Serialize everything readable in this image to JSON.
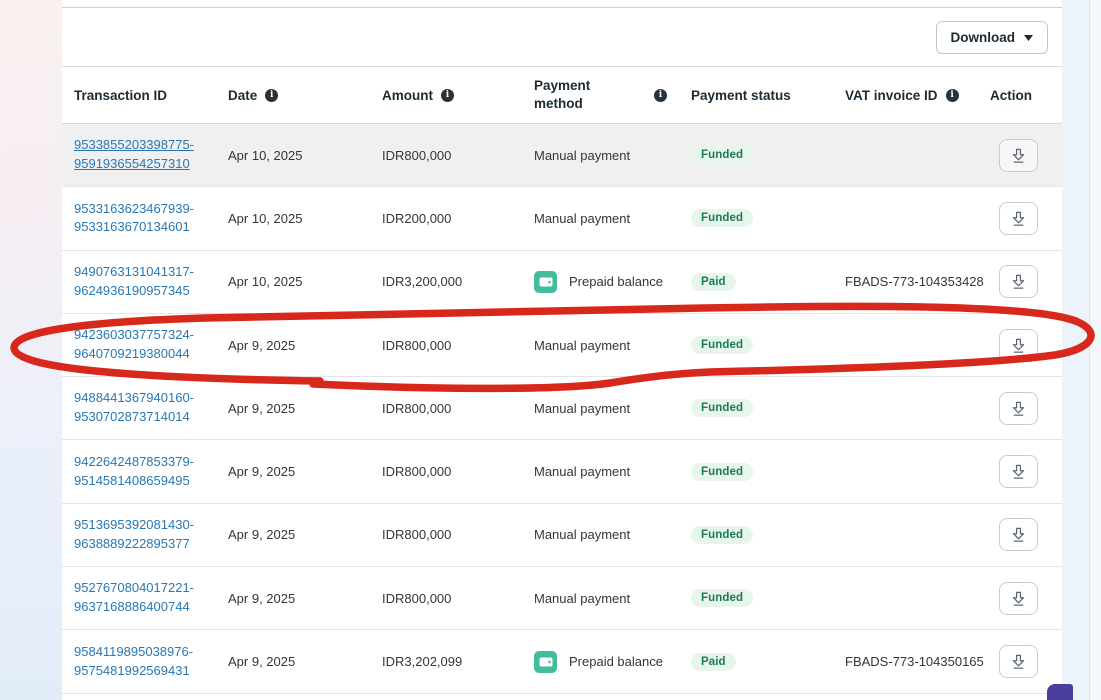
{
  "toolbar": {
    "download_label": "Download"
  },
  "table": {
    "columns": [
      {
        "key": "id",
        "label": "Transaction ID",
        "info": false
      },
      {
        "key": "date",
        "label": "Date",
        "info": true
      },
      {
        "key": "amount",
        "label": "Amount",
        "info": true
      },
      {
        "key": "method",
        "label": "Payment method",
        "info": true
      },
      {
        "key": "status",
        "label": "Payment status",
        "info": false
      },
      {
        "key": "vat",
        "label": "VAT invoice ID",
        "info": true
      },
      {
        "key": "action",
        "label": "Action",
        "info": false
      }
    ],
    "rows": [
      {
        "id_line1": "9533855203398775-",
        "id_line2": "9591936554257310",
        "date": "Apr 10, 2025",
        "amount": "IDR800,000",
        "method": "Manual payment",
        "method_type": "manual",
        "status": "Funded",
        "vat": "",
        "highlighted": true
      },
      {
        "id_line1": "9533163623467939-",
        "id_line2": "9533163670134601",
        "date": "Apr 10, 2025",
        "amount": "IDR200,000",
        "method": "Manual payment",
        "method_type": "manual",
        "status": "Funded",
        "vat": "",
        "highlighted": false
      },
      {
        "id_line1": "9490763131041317-",
        "id_line2": "9624936190957345",
        "date": "Apr 10, 2025",
        "amount": "IDR3,200,000",
        "method": "Prepaid balance",
        "method_type": "prepaid",
        "status": "Paid",
        "vat": "FBADS-773-104353428",
        "highlighted": false
      },
      {
        "id_line1": "9423603037757324-",
        "id_line2": "9640709219380044",
        "date": "Apr 9, 2025",
        "amount": "IDR800,000",
        "method": "Manual payment",
        "method_type": "manual",
        "status": "Funded",
        "vat": "",
        "highlighted": false
      },
      {
        "id_line1": "9488441367940160-",
        "id_line2": "9530702873714014",
        "date": "Apr 9, 2025",
        "amount": "IDR800,000",
        "method": "Manual payment",
        "method_type": "manual",
        "status": "Funded",
        "vat": "",
        "highlighted": false
      },
      {
        "id_line1": "9422642487853379-",
        "id_line2": "9514581408659495",
        "date": "Apr 9, 2025",
        "amount": "IDR800,000",
        "method": "Manual payment",
        "method_type": "manual",
        "status": "Funded",
        "vat": "",
        "highlighted": false
      },
      {
        "id_line1": "9513695392081430-",
        "id_line2": "9638889222895377",
        "date": "Apr 9, 2025",
        "amount": "IDR800,000",
        "method": "Manual payment",
        "method_type": "manual",
        "status": "Funded",
        "vat": "",
        "highlighted": false
      },
      {
        "id_line1": "9527670804017221-",
        "id_line2": "9637168886400744",
        "date": "Apr 9, 2025",
        "amount": "IDR800,000",
        "method": "Manual payment",
        "method_type": "manual",
        "status": "Funded",
        "vat": "",
        "highlighted": false
      },
      {
        "id_line1": "9584119895038976-",
        "id_line2": "9575481992569431",
        "date": "Apr 9, 2025",
        "amount": "IDR3,202,099",
        "method": "Prepaid balance",
        "method_type": "prepaid",
        "status": "Paid",
        "vat": "FBADS-773-104350165",
        "highlighted": false
      }
    ]
  },
  "annotation": {
    "type": "hand-drawn-circle",
    "circled_row_index": 3,
    "color": "#d8271b"
  },
  "colors": {
    "link_blue": "#2878b5",
    "badge_text_green": "#1d7a52",
    "badge_bg_green": "#e6f6ed",
    "prepaid_icon_teal": "#43bb9e",
    "widget_purple": "#4a3f9e",
    "icon_gray": "#5b6670"
  }
}
